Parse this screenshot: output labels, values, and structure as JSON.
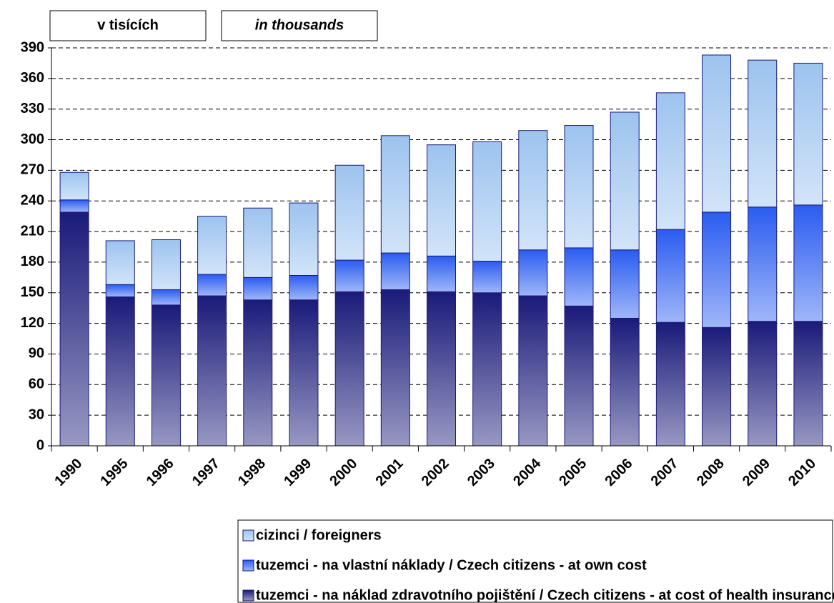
{
  "chart_data": {
    "type": "bar",
    "stacked": true,
    "annotations": [
      "v tisících",
      "in thousands"
    ],
    "categories": [
      "1990",
      "1995",
      "1996",
      "1997",
      "1998",
      "1999",
      "2000",
      "2001",
      "2002",
      "2003",
      "2004",
      "2005",
      "2006",
      "2007",
      "2008",
      "2009",
      "2010"
    ],
    "series": [
      {
        "name": "tuzemci - na náklad zdravotního pojištění / Czech citizens - at cost of health insurance",
        "color": "#1a1a7a",
        "values": [
          229,
          146,
          138,
          147,
          143,
          143,
          151,
          153,
          151,
          150,
          147,
          137,
          125,
          121,
          116,
          122,
          122
        ]
      },
      {
        "name": "tuzemci - na vlastní náklady / Czech citizens - at own cost",
        "color": "#2a5cf0",
        "values": [
          12,
          12,
          15,
          21,
          22,
          24,
          31,
          36,
          35,
          31,
          45,
          57,
          67,
          91,
          113,
          112,
          114
        ]
      },
      {
        "name": "cizinci / foreigners",
        "color": "#9cc3ef",
        "values": [
          27,
          43,
          49,
          57,
          68,
          71,
          93,
          115,
          109,
          117,
          117,
          120,
          135,
          134,
          154,
          144,
          139
        ]
      }
    ],
    "ylim": [
      0,
      390
    ],
    "yticks": [
      0,
      30,
      60,
      90,
      120,
      150,
      180,
      210,
      240,
      270,
      300,
      330,
      360,
      390
    ],
    "grid": true,
    "legend": "bottom"
  }
}
